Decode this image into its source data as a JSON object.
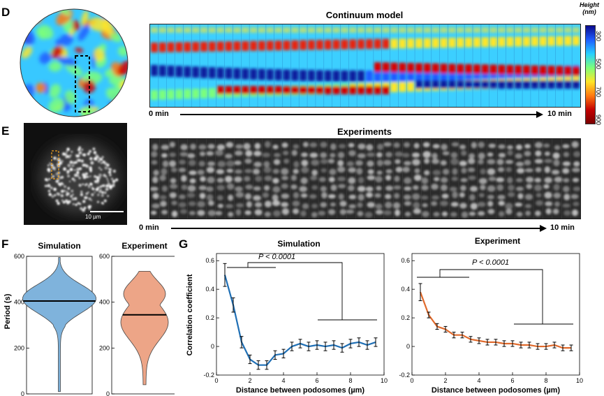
{
  "panels": {
    "D": {
      "letter": "D",
      "title": "Continuum model",
      "time_start": "0 min",
      "time_end": "10 min",
      "colorbar": {
        "title_line1": "Height",
        "title_line2": "(nm)",
        "ticks": [
          "300",
          "500",
          "700",
          "900"
        ],
        "colors": [
          "#0a0a8c",
          "#1e5cff",
          "#27d0ff",
          "#7dff7a",
          "#ffe628",
          "#ff7a10",
          "#c40000",
          "#7a0000"
        ]
      }
    },
    "E": {
      "letter": "E",
      "title": "Experiments",
      "scalebar_label": "10 µm",
      "time_start": "0 min",
      "time_end": "10 min"
    },
    "F": {
      "letter": "F",
      "ylabel": "Period (s)",
      "sim_title": "Simulation",
      "exp_title": "Experiment",
      "sim_color": "#7fb3dc",
      "exp_color": "#eda587",
      "yticks": [
        "0",
        "200",
        "400",
        "600"
      ]
    },
    "G": {
      "letter": "G",
      "ylabel": "Correlation coefficient",
      "xlabel": "Distance between podosomes (µm)",
      "sim_title": "Simulation",
      "exp_title": "Experiment",
      "pvalue": "P < 0.0001",
      "yticks_sim": [
        "-0.2",
        "0",
        "0.2",
        "0.4",
        "0.6"
      ],
      "yticks_exp": [
        "-0.2",
        "0",
        "0.2",
        "0.4",
        "0.6"
      ],
      "xticks": [
        "0",
        "2",
        "4",
        "6",
        "8",
        "10"
      ]
    }
  },
  "chart_data": [
    {
      "type": "violin",
      "title": "Simulation",
      "ylabel": "Period (s)",
      "ylim": [
        0,
        600
      ],
      "median": 405,
      "range": [
        10,
        595
      ],
      "color": "#7fb3dc"
    },
    {
      "type": "violin",
      "title": "Experiment",
      "ylabel": "",
      "ylim": [
        0,
        600
      ],
      "median": 345,
      "range": [
        40,
        535
      ],
      "color": "#eda587"
    },
    {
      "type": "line",
      "title": "Simulation",
      "xlabel": "Distance between podosomes (µm)",
      "ylabel": "Correlation coefficient",
      "xlim": [
        0,
        10
      ],
      "ylim": [
        -0.2,
        0.65
      ],
      "color": "#1f6fb5",
      "x": [
        0.5,
        1.0,
        1.5,
        2.0,
        2.5,
        3.0,
        3.5,
        4.0,
        4.5,
        5.0,
        5.5,
        6.0,
        6.5,
        7.0,
        7.5,
        8.0,
        8.5,
        9.0,
        9.5
      ],
      "y": [
        0.5,
        0.29,
        0.03,
        -0.09,
        -0.13,
        -0.13,
        -0.06,
        -0.05,
        0.0,
        0.02,
        0.0,
        0.01,
        0.0,
        0.01,
        -0.01,
        0.02,
        0.03,
        0.01,
        0.03
      ],
      "err": [
        0.08,
        0.05,
        0.04,
        0.03,
        0.03,
        0.03,
        0.03,
        0.03,
        0.03,
        0.03,
        0.03,
        0.03,
        0.03,
        0.03,
        0.03,
        0.03,
        0.03,
        0.03,
        0.03
      ]
    },
    {
      "type": "line",
      "title": "Experiment",
      "xlabel": "Distance between podosomes (µm)",
      "ylabel": "",
      "xlim": [
        0,
        10
      ],
      "ylim": [
        -0.2,
        0.65
      ],
      "color": "#e06a2c",
      "x": [
        0.5,
        1.0,
        1.5,
        2.0,
        2.5,
        3.0,
        3.5,
        4.0,
        4.5,
        5.0,
        5.5,
        6.0,
        6.5,
        7.0,
        7.5,
        8.0,
        8.5,
        9.0,
        9.5
      ],
      "y": [
        0.38,
        0.22,
        0.14,
        0.12,
        0.08,
        0.08,
        0.05,
        0.04,
        0.03,
        0.03,
        0.02,
        0.02,
        0.01,
        0.01,
        0.0,
        0.0,
        0.01,
        -0.01,
        -0.01
      ],
      "err": [
        0.06,
        0.02,
        0.02,
        0.02,
        0.02,
        0.02,
        0.02,
        0.02,
        0.02,
        0.02,
        0.02,
        0.02,
        0.02,
        0.02,
        0.02,
        0.02,
        0.02,
        0.02,
        0.02
      ]
    }
  ]
}
